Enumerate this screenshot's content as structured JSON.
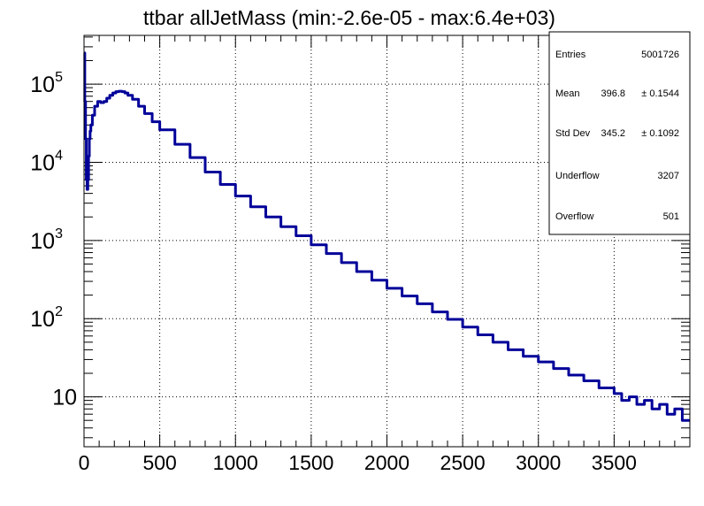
{
  "chart_data": {
    "type": "line",
    "title": "ttbar allJetMass (min:-2.6e-05 - max:6.4e+03)",
    "xlabel": "",
    "ylabel": "",
    "xlim": [
      0,
      4000
    ],
    "ylim": [
      2.3,
      420000
    ],
    "yscale": "log",
    "grid": true,
    "x_ticks": [
      "0",
      "500",
      "1000",
      "1500",
      "2000",
      "2500",
      "3000",
      "3500"
    ],
    "y_ticks": [
      {
        "label": "10",
        "value": 10
      },
      {
        "label": "10^2",
        "base": "10",
        "exp": "2",
        "value": 100
      },
      {
        "label": "10^3",
        "base": "10",
        "exp": "3",
        "value": 1000
      },
      {
        "label": "10^4",
        "base": "10",
        "exp": "4",
        "value": 10000
      },
      {
        "label": "10^5",
        "base": "10",
        "exp": "5",
        "value": 100000
      }
    ],
    "line_color": "#000099",
    "series": [
      {
        "x": [
          0,
          5,
          10,
          15,
          20,
          25,
          30,
          35,
          40,
          45,
          55,
          70,
          90,
          110,
          130,
          150,
          170,
          190,
          210,
          230,
          250,
          270,
          290,
          320,
          360,
          400,
          450,
          500,
          600,
          700,
          800,
          900,
          1000,
          1100,
          1200,
          1300,
          1400,
          1500,
          1600,
          1700,
          1800,
          1900,
          2000,
          2100,
          2200,
          2300,
          2400,
          2500,
          2600,
          2700,
          2800,
          2900,
          3000,
          3100,
          3200,
          3300,
          3400,
          3500,
          3550,
          3600,
          3650,
          3700,
          3750,
          3800,
          3850,
          3900,
          3950,
          3980
        ],
        "y": [
          250000,
          60000,
          20000,
          6000,
          4500,
          6000,
          12000,
          20000,
          25000,
          30000,
          40000,
          52000,
          60000,
          58000,
          60000,
          66000,
          72000,
          77000,
          80000,
          81000,
          80000,
          77000,
          72000,
          64000,
          52000,
          42000,
          33000,
          26000,
          17000,
          11500,
          7500,
          5200,
          3700,
          2700,
          2000,
          1500,
          1150,
          880,
          680,
          520,
          400,
          310,
          245,
          195,
          155,
          122,
          98,
          78,
          62,
          50,
          40,
          33,
          28,
          23,
          19,
          16,
          13,
          11,
          9,
          10,
          8,
          9,
          7,
          8,
          6,
          7,
          5,
          5
        ]
      }
    ],
    "stats": {
      "entries_label": "Entries",
      "entries": "5001726",
      "mean_label": "Mean",
      "mean": "396.8",
      "mean_err": "± 0.1544",
      "std_label": "Std Dev",
      "std": "345.2",
      "std_err": "± 0.1092",
      "underflow_label": "Underflow",
      "underflow": "3207",
      "overflow_label": "Overflow",
      "overflow": "501"
    }
  }
}
